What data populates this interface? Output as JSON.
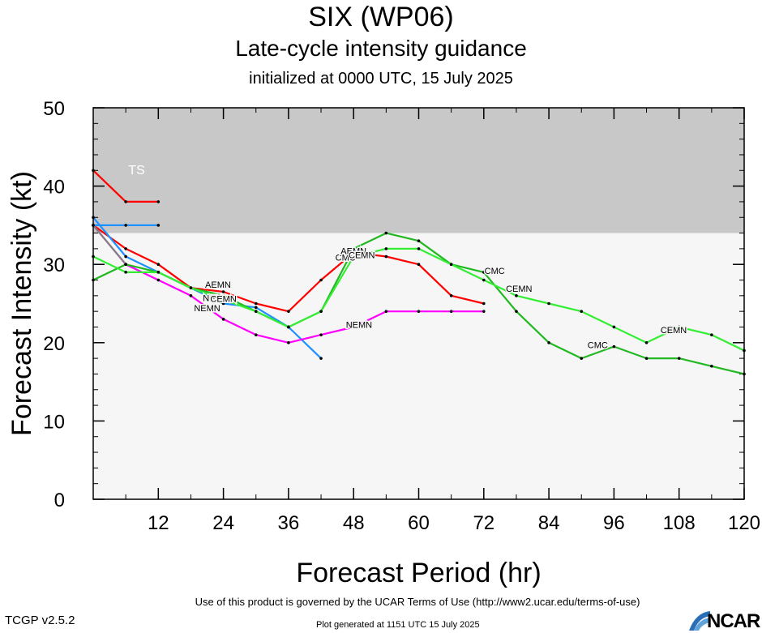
{
  "chart_data": {
    "type": "line",
    "title": "SIX (WP06)",
    "subtitle": "Late-cycle intensity guidance",
    "subtitle2": "initialized at 0000 UTC, 15 July 2025",
    "xlabel": "Forecast Period (hr)",
    "ylabel": "Forecast Intensity (kt)",
    "xlim": [
      0,
      120
    ],
    "ylim": [
      0,
      50
    ],
    "xticks": [
      12,
      24,
      36,
      48,
      60,
      72,
      84,
      96,
      108,
      120
    ],
    "yticks": [
      0,
      10,
      20,
      30,
      40,
      50
    ],
    "shaded_region": {
      "label": "TS",
      "from": 34,
      "to": 50,
      "color": "#c8c8c8"
    },
    "plot_background": "#f6f6f6",
    "series": [
      {
        "name": "AEMN",
        "color": "#ff0000",
        "x": [
          0,
          6,
          12,
          18,
          24,
          30,
          36,
          42,
          48,
          54,
          60,
          66,
          72
        ],
        "y": [
          35,
          32,
          30,
          27,
          26.5,
          25,
          24,
          28,
          31.5,
          31,
          30,
          26,
          25
        ]
      },
      {
        "name": "",
        "color": "#ff0000",
        "x": [
          0,
          6,
          12
        ],
        "y": [
          42,
          38,
          38
        ]
      },
      {
        "name": "NGX",
        "color": "#1e90ff",
        "x": [
          0,
          6,
          12,
          18,
          24,
          30,
          36,
          42
        ],
        "y": [
          36,
          31,
          29,
          27,
          25,
          24.5,
          22,
          18
        ]
      },
      {
        "name": "",
        "color": "#1e90ff",
        "x": [
          0,
          6,
          12
        ],
        "y": [
          35,
          35,
          35
        ]
      },
      {
        "name": "NEMN",
        "color": "#ff00ff",
        "x": [
          0,
          6,
          12,
          18,
          24,
          30,
          36,
          42,
          48,
          54,
          60,
          66,
          72
        ],
        "y": [
          35,
          30,
          28,
          26,
          23,
          21,
          20,
          21,
          22,
          24,
          24,
          24,
          24
        ]
      },
      {
        "name": "CMC",
        "color": "#22b822",
        "x": [
          0,
          6,
          12,
          18,
          24,
          30,
          36,
          42,
          48,
          54,
          60,
          66,
          72,
          78,
          84,
          90,
          96,
          102,
          108,
          114,
          120
        ],
        "y": [
          28,
          30,
          29,
          27,
          26,
          24,
          22,
          24,
          32,
          34,
          33,
          30,
          29,
          24,
          20,
          18,
          19.5,
          18,
          18,
          17,
          16
        ]
      },
      {
        "name": "CEMN",
        "color": "#33ee33",
        "x": [
          0,
          6,
          12,
          18,
          24,
          30,
          36,
          42,
          48,
          54,
          60,
          66,
          72,
          78,
          84,
          90,
          96,
          102,
          108,
          114,
          120
        ],
        "y": [
          31,
          29,
          29,
          27,
          25.5,
          24,
          22,
          24,
          31,
          32,
          32,
          30,
          28,
          26,
          25,
          24,
          22,
          20,
          22,
          21,
          19
        ]
      },
      {
        "name": "",
        "color": "#808080",
        "x": [
          0,
          6
        ],
        "y": [
          35,
          30
        ]
      }
    ],
    "annotations": [
      {
        "text": "AEMN",
        "x": 23,
        "y": 27
      },
      {
        "text": "NGX",
        "x": 22,
        "y": 25.3
      },
      {
        "text": "CEMN",
        "x": 24,
        "y": 25.2
      },
      {
        "text": "NEMN",
        "x": 21,
        "y": 24
      },
      {
        "text": "CMC",
        "x": 46.5,
        "y": 30.5
      },
      {
        "text": "AEMN",
        "x": 48,
        "y": 31.3
      },
      {
        "text": "CEMN",
        "x": 49.5,
        "y": 30.8
      },
      {
        "text": "NEMN",
        "x": 49,
        "y": 21.9
      },
      {
        "text": "CMC",
        "x": 74,
        "y": 28.8
      },
      {
        "text": "CEMN",
        "x": 78.5,
        "y": 26.5
      },
      {
        "text": "CMC",
        "x": 93,
        "y": 19.3
      },
      {
        "text": "CEMN",
        "x": 107,
        "y": 21.2
      }
    ]
  },
  "footer": {
    "terms": "Use of this product is governed by the UCAR Terms of Use (http://www2.ucar.edu/terms-of-use)",
    "version": "TCGP v2.5.2",
    "generated": "Plot generated at 1151 UTC   15 July 2025",
    "logo": "NCAR"
  }
}
